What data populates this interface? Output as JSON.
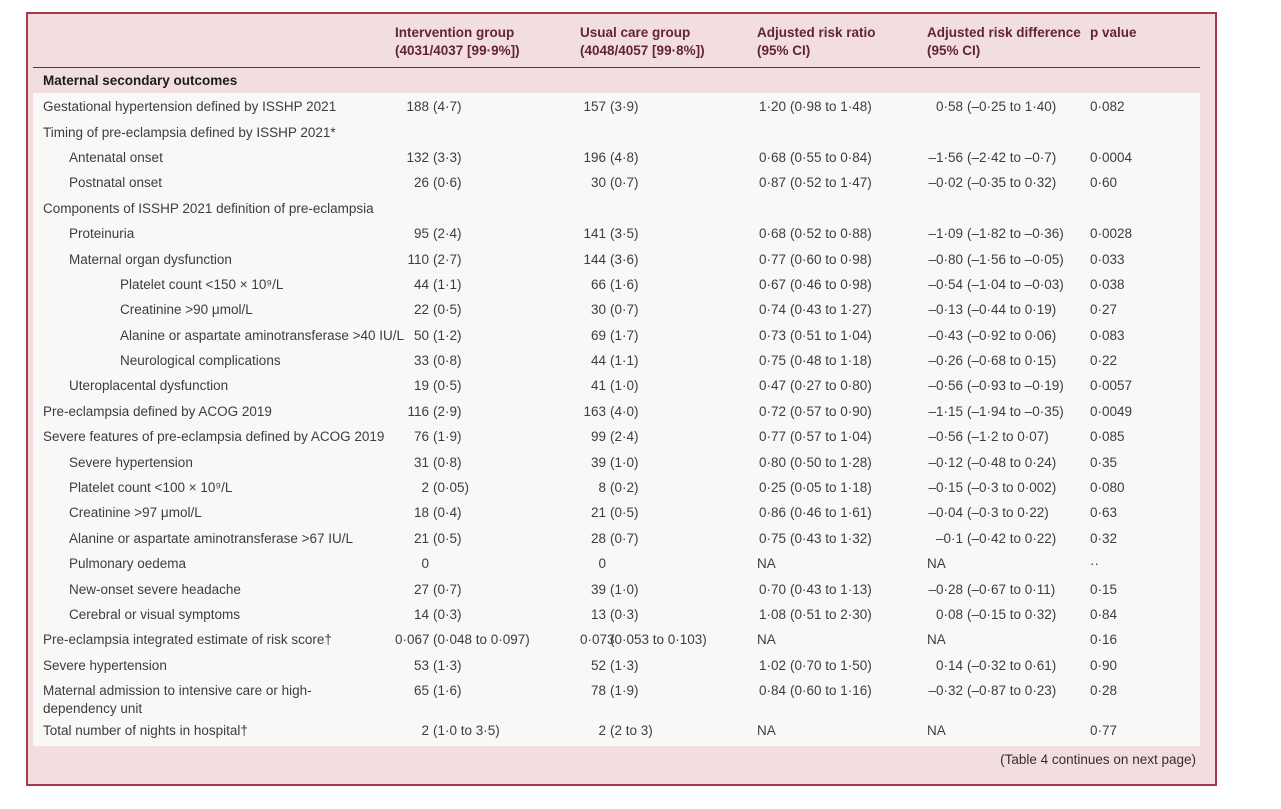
{
  "theme": {
    "crimson": "#a53950",
    "pink": "#f2dee1",
    "bodybg": "#f8f8f7",
    "ink": "#3d3d3d",
    "maroon": "#63242f",
    "rule": "#404040",
    "sectionink": "#1c1c1c"
  },
  "table": {
    "headers": [
      {
        "l1": "Intervention group",
        "l2": "(4031/4037 [99·9%])"
      },
      {
        "l1": "Usual care group",
        "l2": "(4048/4057 [99·8%])"
      },
      {
        "l1": "Adjusted risk ratio",
        "l2": "(95% CI)"
      },
      {
        "l1": "Adjusted risk difference",
        "l2": "(95% CI)"
      },
      {
        "l1": "p value",
        "l2": ""
      }
    ],
    "rows": [
      {
        "type": "section",
        "label": "Maternal secondary outcomes"
      },
      {
        "indent": 0,
        "label": "Gestational hypertension defined by ISSHP 2021",
        "c1": "188 (4·7)",
        "c2": "157 (3·9)",
        "c3": "1·20 (0·98 to 1·48)",
        "c4": "0·58 (–0·25 to 1·40)",
        "c5": "0·082"
      },
      {
        "indent": 0,
        "label": "Timing of pre-eclampsia defined by ISSHP 2021*",
        "c1": "",
        "c2": "",
        "c3": "",
        "c4": "",
        "c5": ""
      },
      {
        "indent": 1,
        "label": "Antenatal onset",
        "c1": "132 (3·3)",
        "c2": "196 (4·8)",
        "c3": "0·68 (0·55 to 0·84)",
        "c4": "–1·56 (–2·42 to –0·7)",
        "c5": "0·0004"
      },
      {
        "indent": 1,
        "label": "Postnatal onset",
        "c1": "26 (0·6)",
        "c2": "30 (0·7)",
        "c3": "0·87 (0·52 to 1·47)",
        "c4": "–0·02 (–0·35 to 0·32)",
        "c5": "0·60"
      },
      {
        "indent": 0,
        "label": "Components of ISSHP 2021 definition of pre-eclampsia",
        "c1": "",
        "c2": "",
        "c3": "",
        "c4": "",
        "c5": ""
      },
      {
        "indent": 1,
        "label": "Proteinuria",
        "c1": "95 (2·4)",
        "c2": "141 (3·5)",
        "c3": "0·68 (0·52 to 0·88)",
        "c4": "–1·09 (–1·82 to –0·36)",
        "c5": "0·0028"
      },
      {
        "indent": 1,
        "label": "Maternal organ dysfunction",
        "c1": "110 (2·7)",
        "c2": "144 (3·6)",
        "c3": "0·77 (0·60 to 0·98)",
        "c4": "–0·80 (–1·56 to –0·05)",
        "c5": "0·033"
      },
      {
        "indent": 2,
        "label": "Platelet count <150 × 10⁹/L",
        "c1": "44 (1·1)",
        "c2": "66 (1·6)",
        "c3": "0·67 (0·46 to 0·98)",
        "c4": "–0·54 (–1·04 to –0·03)",
        "c5": "0·038"
      },
      {
        "indent": 2,
        "label": "Creatinine >90 μmol/L",
        "c1": "22 (0·5)",
        "c2": "30 (0·7)",
        "c3": "0·74 (0·43 to 1·27)",
        "c4": "–0·13 (–0·44 to 0·19)",
        "c5": "0·27"
      },
      {
        "indent": 2,
        "label": "Alanine or aspartate aminotransferase >40 IU/L",
        "c1": "50 (1·2)",
        "c2": "69 (1·7)",
        "c3": "0·73 (0·51 to 1·04)",
        "c4": "–0·43 (–0·92 to 0·06)",
        "c5": "0·083"
      },
      {
        "indent": 2,
        "label": "Neurological complications",
        "c1": "33 (0·8)",
        "c2": "44 (1·1)",
        "c3": "0·75 (0·48 to 1·18)",
        "c4": "–0·26 (–0·68 to 0·15)",
        "c5": "0·22"
      },
      {
        "indent": 1,
        "label": "Uteroplacental dysfunction",
        "c1": "19 (0·5)",
        "c2": "41 (1·0)",
        "c3": "0·47 (0·27 to 0·80)",
        "c4": "–0·56 (–0·93 to –0·19)",
        "c5": "0·0057"
      },
      {
        "indent": 0,
        "label": "Pre-eclampsia defined by ACOG 2019",
        "c1": "116 (2·9)",
        "c2": "163 (4·0)",
        "c3": "0·72 (0·57 to 0·90)",
        "c4": "–1·15 (–1·94 to –0·35)",
        "c5": "0·0049"
      },
      {
        "indent": 0,
        "label": "Severe features of pre-eclampsia defined by ACOG 2019",
        "c1": "76 (1·9)",
        "c2": "99 (2·4)",
        "c3": "0·77 (0·57 to 1·04)",
        "c4": "–0·56 (–1·2 to 0·07)",
        "c5": "0·085"
      },
      {
        "indent": 1,
        "label": "Severe hypertension",
        "c1": "31 (0·8)",
        "c2": "39 (1·0)",
        "c3": "0·80 (0·50 to 1·28)",
        "c4": "–0·12 (–0·48 to 0·24)",
        "c5": "0·35"
      },
      {
        "indent": 1,
        "label": "Platelet count <100 × 10⁹/L",
        "c1": "2 (0·05)",
        "c2": "8 (0·2)",
        "c3": "0·25 (0·05 to 1·18)",
        "c4": "–0·15 (–0·3 to 0·002)",
        "c5": "0·080"
      },
      {
        "indent": 1,
        "label": "Creatinine >97 μmol/L",
        "c1": "18 (0·4)",
        "c2": "21 (0·5)",
        "c3": "0·86 (0·46 to 1·61)",
        "c4": "–0·04 (–0·3 to 0·22)",
        "c5": "0·63"
      },
      {
        "indent": 1,
        "label": "Alanine or aspartate aminotransferase >67 IU/L",
        "c1": "21 (0·5)",
        "c2": "28 (0·7)",
        "c3": "0·75 (0·43 to 1·32)",
        "c4": "–0·1 (–0·42 to 0·22)",
        "c5": "0·32"
      },
      {
        "indent": 1,
        "label": "Pulmonary oedema",
        "c1": "0",
        "c2": "0",
        "c3": "NA",
        "c4": "NA",
        "c5": "··"
      },
      {
        "indent": 1,
        "label": "New-onset severe headache",
        "c1": "27 (0·7)",
        "c2": "39 (1·0)",
        "c3": "0·70 (0·43 to 1·13)",
        "c4": "–0·28 (–0·67 to 0·11)",
        "c5": "0·15"
      },
      {
        "indent": 1,
        "label": "Cerebral or visual symptoms",
        "c1": "14 (0·3)",
        "c2": "13 (0·3)",
        "c3": "1·08 (0·51 to 2·30)",
        "c4": "0·08 (–0·15 to 0·32)",
        "c5": "0·84"
      },
      {
        "indent": 0,
        "label": "Pre-eclampsia integrated estimate of risk score†",
        "c1": "0·067 (0·048 to 0·097)",
        "c2": "0·073 (0·053 to 0·103)",
        "c3": "NA",
        "c4": "NA",
        "c5": "0·16"
      },
      {
        "indent": 0,
        "label": "Severe hypertension",
        "c1": "53 (1·3)",
        "c2": "52 (1·3)",
        "c3": "1·02 (0·70 to 1·50)",
        "c4": "0·14 (–0·32 to 0·61)",
        "c5": "0·90"
      },
      {
        "indent": 0,
        "wrap": true,
        "label": "Maternal admission to intensive care or high-dependency unit",
        "c1": "65 (1·6)",
        "c2": "78 (1·9)",
        "c3": "0·84 (0·60 to 1·16)",
        "c4": "–0·32 (–0·87 to 0·23)",
        "c5": "0·28"
      },
      {
        "indent": 0,
        "label": "Total number of nights in hospital†",
        "c1": "2 (1·0 to 3·5)",
        "c2": "2 (2 to 3)",
        "c3": "NA",
        "c4": "NA",
        "c5": "0·77"
      }
    ],
    "footer": "(Table 4 continues on next page)"
  }
}
